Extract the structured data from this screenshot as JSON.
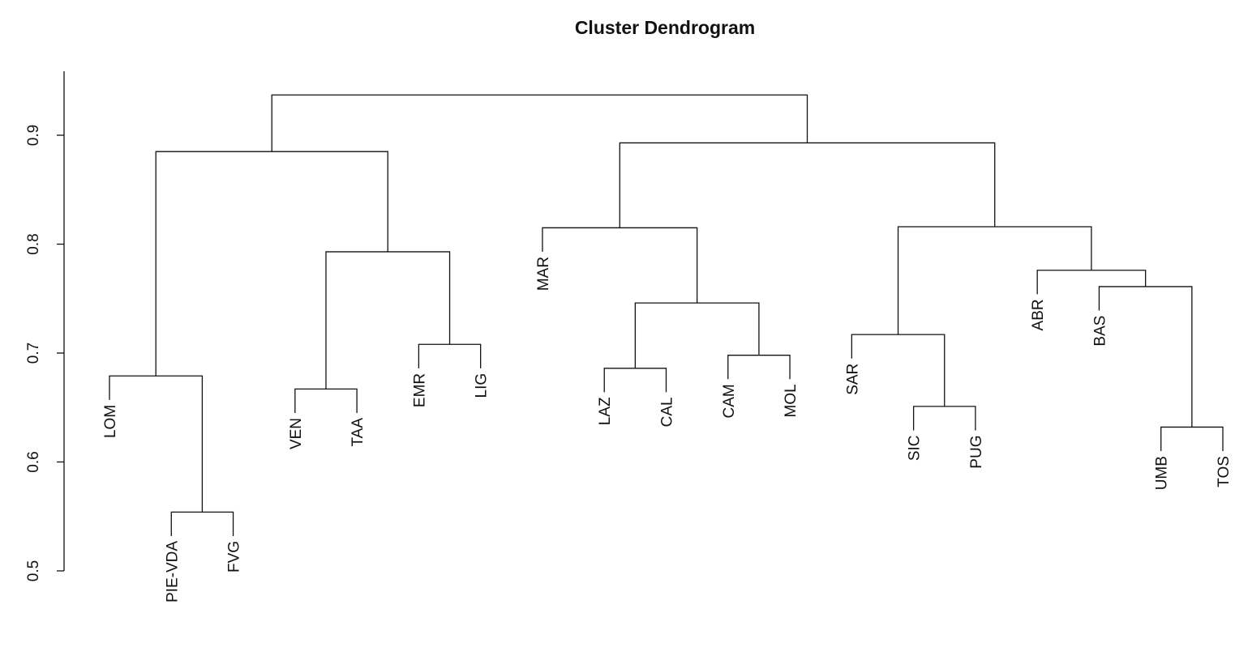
{
  "chart_data": {
    "type": "dendrogram",
    "title": "Cluster Dendrogram",
    "ylabel": "",
    "ylim": [
      0.45,
      0.95
    ],
    "yticks": [
      0.5,
      0.6,
      0.7,
      0.8,
      0.9
    ],
    "ytick_labels": [
      "0.5",
      "0.6",
      "0.7",
      "0.8",
      "0.9"
    ],
    "leaves": [
      "LOM",
      "PIE-VDA",
      "FVG",
      "VEN",
      "TAA",
      "EMR",
      "LIG",
      "MAR",
      "LAZ",
      "CAL",
      "CAM",
      "MOL",
      "SAR",
      "SIC",
      "PUG",
      "ABR",
      "BAS",
      "UMB",
      "TOS"
    ],
    "merges": [
      {
        "left": "PIE-VDA",
        "right": "FVG",
        "height": 0.554
      },
      {
        "left": "LOM",
        "right": "PIE-VDA+FVG",
        "height": 0.679
      },
      {
        "left": "VEN",
        "right": "TAA",
        "height": 0.667
      },
      {
        "left": "EMR",
        "right": "LIG",
        "height": 0.708
      },
      {
        "left": "VEN+TAA",
        "right": "EMR+LIG",
        "height": 0.793
      },
      {
        "left": "LOM+PIE-VDA+FVG",
        "right": "VEN+TAA+EMR+LIG",
        "height": 0.885
      },
      {
        "left": "LAZ",
        "right": "CAL",
        "height": 0.686
      },
      {
        "left": "CAM",
        "right": "MOL",
        "height": 0.698
      },
      {
        "left": "LAZ+CAL",
        "right": "CAM+MOL",
        "height": 0.746
      },
      {
        "left": "MAR",
        "right": "LAZ+CAL+CAM+MOL",
        "height": 0.815
      },
      {
        "left": "SIC",
        "right": "PUG",
        "height": 0.651
      },
      {
        "left": "SAR",
        "right": "SIC+PUG",
        "height": 0.717
      },
      {
        "left": "UMB",
        "right": "TOS",
        "height": 0.632
      },
      {
        "left": "BAS",
        "right": "UMB+TOS",
        "height": 0.761
      },
      {
        "left": "ABR",
        "right": "BAS+UMB+TOS",
        "height": 0.776
      },
      {
        "left": "SAR+SIC+PUG",
        "right": "ABR+BAS+UMB+TOS",
        "height": 0.816
      },
      {
        "left": "MAR+LAZ+CAL+CAM+MOL",
        "right": "SAR+SIC+PUG+ABR+BAS+UMB+TOS",
        "height": 0.893
      },
      {
        "left": "LOM+PIE-VDA+FVG+VEN+TAA+EMR+LIG",
        "right": "MAR+LAZ+CAL+CAM+MOL+SAR+SIC+PUG+ABR+BAS+UMB+TOS",
        "height": 0.937
      }
    ]
  }
}
